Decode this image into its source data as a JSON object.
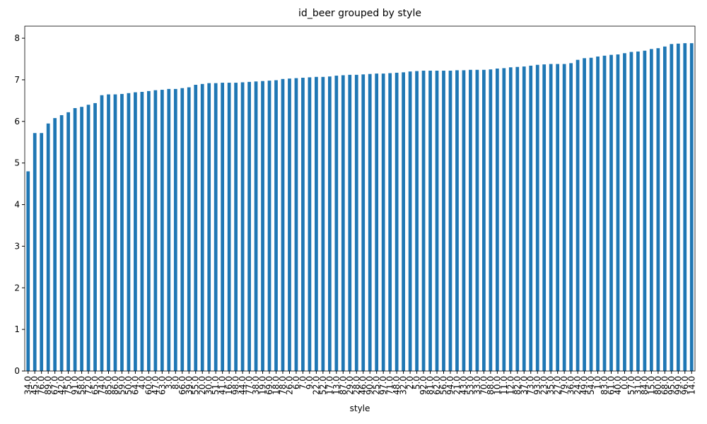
{
  "chart_data": {
    "type": "bar",
    "title": "id_beer grouped by style",
    "x_label": "style",
    "categories": [
      "34.0",
      "45.0",
      "76.0",
      "89.0",
      "67.0",
      "42.0",
      "75.0",
      "91.0",
      "58.0",
      "72.0",
      "65.0",
      "74.0",
      "85.0",
      "86.0",
      "59.0",
      "50.0",
      "64.0",
      "4.0",
      "60.0",
      "47.0",
      "63.0",
      "3.0",
      "8.0",
      "66.0",
      "39.0",
      "55.0",
      "20.0",
      "30.0",
      "51.0",
      "41.0",
      "16.0",
      "98.0",
      "44.0",
      "77.0",
      "38.0",
      "19.0",
      "69.0",
      "18.0",
      "78.0",
      "26.0",
      "6.0",
      "7.0",
      "9.0",
      "22.0",
      "52.0",
      "17.0",
      "13.0",
      "87.0",
      "29.0",
      "28.0",
      "46.0",
      "90.0",
      "25.0",
      "97.0",
      "71.0",
      "48.0",
      "32.0",
      "2.0",
      "5.0",
      "92.0",
      "81.0",
      "62.0",
      "56.0",
      "94.0",
      "21.0",
      "43.0",
      "53.0",
      "33.0",
      "70.0",
      "88.0",
      "10.0",
      "11.0",
      "12.0",
      "82.0",
      "37.0",
      "73.0",
      "93.0",
      "23.0",
      "35.0",
      "27.0",
      "79.0",
      "36.0",
      "24.0",
      "49.0",
      "54.0",
      "1.0",
      "83.0",
      "61.0",
      "40.0",
      "0.0",
      "57.0",
      "31.0",
      "84.0",
      "15.0",
      "80.0",
      "68.0",
      "95.0",
      "99.0",
      "96.0",
      "14.0"
    ],
    "values": [
      4.8,
      5.72,
      5.72,
      5.95,
      6.08,
      6.15,
      6.22,
      6.32,
      6.35,
      6.4,
      6.44,
      6.63,
      6.65,
      6.65,
      6.66,
      6.68,
      6.7,
      6.71,
      6.73,
      6.75,
      6.76,
      6.78,
      6.78,
      6.8,
      6.82,
      6.88,
      6.9,
      6.92,
      6.92,
      6.93,
      6.93,
      6.93,
      6.94,
      6.95,
      6.96,
      6.97,
      6.98,
      6.99,
      7.02,
      7.03,
      7.04,
      7.05,
      7.06,
      7.07,
      7.07,
      7.08,
      7.1,
      7.11,
      7.12,
      7.12,
      7.13,
      7.14,
      7.15,
      7.15,
      7.16,
      7.17,
      7.18,
      7.2,
      7.21,
      7.22,
      7.22,
      7.22,
      7.22,
      7.22,
      7.23,
      7.23,
      7.24,
      7.24,
      7.24,
      7.25,
      7.27,
      7.28,
      7.3,
      7.31,
      7.32,
      7.34,
      7.36,
      7.37,
      7.38,
      7.38,
      7.38,
      7.4,
      7.48,
      7.52,
      7.53,
      7.56,
      7.58,
      7.6,
      7.61,
      7.64,
      7.67,
      7.68,
      7.7,
      7.74,
      7.76,
      7.8,
      7.86,
      7.87,
      7.88,
      7.88
    ],
    "color": "#1f77b4",
    "ylim": [
      0,
      8.29
    ],
    "yticks": [
      0,
      1,
      2,
      3,
      4,
      5,
      6,
      7,
      8
    ],
    "grid": false
  }
}
